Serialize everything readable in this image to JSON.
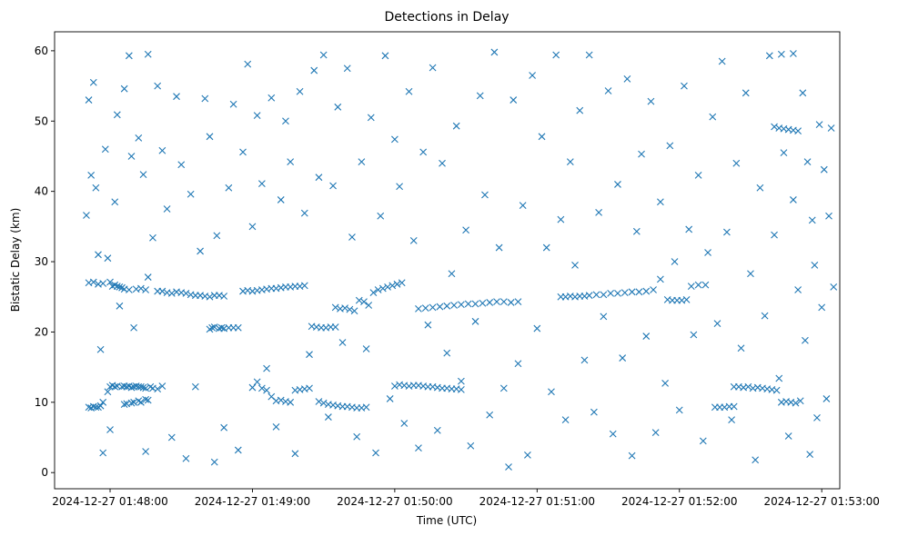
{
  "chart_data": {
    "type": "scatter",
    "title": "Detections in Delay",
    "xlabel": "Time (UTC)",
    "ylabel": "Bistatic Delay (km)",
    "x_units": "seconds after 2024-12-27 01:48:00",
    "xlim": [
      -23.4,
      307.6
    ],
    "ylim": [
      -2.3,
      62.7
    ],
    "grid": false,
    "marker": "x",
    "color": "#1f77b4",
    "x_ticks": [
      {
        "value": 0,
        "label": "2024-12-27 01:48:00"
      },
      {
        "value": 60,
        "label": "2024-12-27 01:49:00"
      },
      {
        "value": 120,
        "label": "2024-12-27 01:50:00"
      },
      {
        "value": 180,
        "label": "2024-12-27 01:51:00"
      },
      {
        "value": 240,
        "label": "2024-12-27 01:52:00"
      },
      {
        "value": 300,
        "label": "2024-12-27 01:53:00"
      }
    ],
    "y_ticks": [
      {
        "value": 0,
        "label": "0"
      },
      {
        "value": 10,
        "label": "10"
      },
      {
        "value": 20,
        "label": "20"
      },
      {
        "value": 30,
        "label": "30"
      },
      {
        "value": 40,
        "label": "40"
      },
      {
        "value": 50,
        "label": "50"
      },
      {
        "value": 60,
        "label": "60"
      }
    ],
    "points": [
      [
        -9,
        9.3
      ],
      [
        -8,
        9.2
      ],
      [
        -7,
        9.4
      ],
      [
        -6,
        9.3
      ],
      [
        -5,
        9.3
      ],
      [
        -4,
        9.5
      ],
      [
        -3,
        10.0
      ],
      [
        -1,
        11.5
      ],
      [
        0,
        12.2
      ],
      [
        1,
        12.4
      ],
      [
        2,
        12.2
      ],
      [
        3,
        12.3
      ],
      [
        5,
        12.2
      ],
      [
        6,
        12.3
      ],
      [
        7,
        12.2
      ],
      [
        8,
        12.3
      ],
      [
        9,
        12.1
      ],
      [
        10,
        12.2
      ],
      [
        11,
        12.3
      ],
      [
        12,
        12.2
      ],
      [
        13,
        12.2
      ],
      [
        14,
        12.1
      ],
      [
        15,
        12.0
      ],
      [
        17,
        12.2
      ],
      [
        18,
        12.0
      ],
      [
        20,
        11.9
      ],
      [
        22,
        12.3
      ],
      [
        6,
        9.7
      ],
      [
        7,
        9.8
      ],
      [
        9,
        9.9
      ],
      [
        10,
        10.0
      ],
      [
        12,
        10.2
      ],
      [
        13,
        10.0
      ],
      [
        15,
        10.4
      ],
      [
        16,
        10.3
      ],
      [
        -9,
        27.0
      ],
      [
        -7,
        27.1
      ],
      [
        -5,
        26.8
      ],
      [
        -3,
        26.9
      ],
      [
        0,
        27.1
      ],
      [
        1,
        26.5
      ],
      [
        2,
        26.7
      ],
      [
        3,
        26.5
      ],
      [
        4,
        26.4
      ],
      [
        5,
        26.3
      ],
      [
        6,
        26.1
      ],
      [
        8,
        26.0
      ],
      [
        11,
        26.1
      ],
      [
        13,
        26.2
      ],
      [
        15,
        26.0
      ],
      [
        16,
        27.8
      ],
      [
        20,
        25.8
      ],
      [
        22,
        25.8
      ],
      [
        24,
        25.6
      ],
      [
        26,
        25.5
      ],
      [
        28,
        25.7
      ],
      [
        30,
        25.6
      ],
      [
        32,
        25.5
      ],
      [
        34,
        25.3
      ],
      [
        36,
        25.2
      ],
      [
        38,
        25.2
      ],
      [
        40,
        25.1
      ],
      [
        42,
        25.0
      ],
      [
        44,
        25.2
      ],
      [
        46,
        25.2
      ],
      [
        48,
        25.1
      ],
      [
        42,
        20.4
      ],
      [
        43,
        20.6
      ],
      [
        44,
        20.7
      ],
      [
        46,
        20.5
      ],
      [
        47,
        20.6
      ],
      [
        48,
        20.5
      ],
      [
        50,
        20.6
      ],
      [
        52,
        20.6
      ],
      [
        54,
        20.6
      ],
      [
        56,
        25.8
      ],
      [
        58,
        25.9
      ],
      [
        60,
        25.8
      ],
      [
        62,
        25.9
      ],
      [
        64,
        26.0
      ],
      [
        66,
        26.1
      ],
      [
        68,
        26.2
      ],
      [
        70,
        26.2
      ],
      [
        72,
        26.3
      ],
      [
        74,
        26.4
      ],
      [
        76,
        26.4
      ],
      [
        78,
        26.5
      ],
      [
        80,
        26.5
      ],
      [
        82,
        26.6
      ],
      [
        60,
        12.1
      ],
      [
        62,
        12.9
      ],
      [
        64,
        12.0
      ],
      [
        66,
        11.7
      ],
      [
        68,
        10.8
      ],
      [
        70,
        10.2
      ],
      [
        72,
        10.3
      ],
      [
        74,
        10.1
      ],
      [
        76,
        10.0
      ],
      [
        78,
        11.7
      ],
      [
        80,
        11.8
      ],
      [
        82,
        11.9
      ],
      [
        84,
        12.0
      ],
      [
        88,
        10.1
      ],
      [
        90,
        9.9
      ],
      [
        92,
        9.7
      ],
      [
        94,
        9.6
      ],
      [
        96,
        9.5
      ],
      [
        98,
        9.4
      ],
      [
        100,
        9.4
      ],
      [
        102,
        9.3
      ],
      [
        104,
        9.2
      ],
      [
        106,
        9.2
      ],
      [
        108,
        9.3
      ],
      [
        85,
        20.8
      ],
      [
        87,
        20.7
      ],
      [
        89,
        20.6
      ],
      [
        91,
        20.6
      ],
      [
        93,
        20.7
      ],
      [
        95,
        20.7
      ],
      [
        95,
        23.5
      ],
      [
        97,
        23.3
      ],
      [
        99,
        23.4
      ],
      [
        101,
        23.2
      ],
      [
        103,
        23.0
      ],
      [
        105,
        24.5
      ],
      [
        107,
        24.3
      ],
      [
        109,
        23.8
      ],
      [
        111,
        25.6
      ],
      [
        113,
        26.0
      ],
      [
        115,
        26.2
      ],
      [
        117,
        26.4
      ],
      [
        119,
        26.6
      ],
      [
        121,
        26.8
      ],
      [
        123,
        27.0
      ],
      [
        120,
        12.3
      ],
      [
        122,
        12.5
      ],
      [
        124,
        12.4
      ],
      [
        126,
        12.3
      ],
      [
        128,
        12.4
      ],
      [
        130,
        12.4
      ],
      [
        132,
        12.3
      ],
      [
        134,
        12.2
      ],
      [
        136,
        12.2
      ],
      [
        138,
        12.1
      ],
      [
        140,
        12.0
      ],
      [
        142,
        12.0
      ],
      [
        144,
        11.9
      ],
      [
        146,
        11.9
      ],
      [
        148,
        11.8
      ],
      [
        130,
        23.3
      ],
      [
        133,
        23.4
      ],
      [
        136,
        23.5
      ],
      [
        139,
        23.6
      ],
      [
        142,
        23.7
      ],
      [
        145,
        23.8
      ],
      [
        148,
        23.9
      ],
      [
        151,
        24.0
      ],
      [
        154,
        24.0
      ],
      [
        157,
        24.1
      ],
      [
        160,
        24.2
      ],
      [
        163,
        24.3
      ],
      [
        166,
        24.3
      ],
      [
        169,
        24.2
      ],
      [
        172,
        24.3
      ],
      [
        190,
        25.0
      ],
      [
        192,
        25.0
      ],
      [
        194,
        25.1
      ],
      [
        196,
        25.0
      ],
      [
        198,
        25.1
      ],
      [
        200,
        25.1
      ],
      [
        202,
        25.2
      ],
      [
        205,
        25.3
      ],
      [
        208,
        25.3
      ],
      [
        211,
        25.5
      ],
      [
        214,
        25.5
      ],
      [
        217,
        25.6
      ],
      [
        220,
        25.7
      ],
      [
        223,
        25.7
      ],
      [
        226,
        25.8
      ],
      [
        229,
        26.0
      ],
      [
        232,
        27.5
      ],
      [
        235,
        24.6
      ],
      [
        237,
        24.5
      ],
      [
        239,
        24.5
      ],
      [
        241,
        24.5
      ],
      [
        243,
        24.6
      ],
      [
        245,
        26.5
      ],
      [
        248,
        26.7
      ],
      [
        251,
        26.7
      ],
      [
        255,
        9.3
      ],
      [
        257,
        9.3
      ],
      [
        259,
        9.3
      ],
      [
        261,
        9.4
      ],
      [
        263,
        9.4
      ],
      [
        263,
        12.2
      ],
      [
        265,
        12.2
      ],
      [
        267,
        12.1
      ],
      [
        269,
        12.2
      ],
      [
        271,
        12.0
      ],
      [
        273,
        12.1
      ],
      [
        275,
        12.0
      ],
      [
        277,
        11.9
      ],
      [
        279,
        11.8
      ],
      [
        281,
        11.7
      ],
      [
        283,
        10.0
      ],
      [
        285,
        10.1
      ],
      [
        287,
        10.0
      ],
      [
        289,
        9.9
      ],
      [
        291,
        10.2
      ],
      [
        280,
        49.2
      ],
      [
        282,
        49.0
      ],
      [
        284,
        48.9
      ],
      [
        286,
        48.8
      ],
      [
        288,
        48.7
      ],
      [
        290,
        48.6
      ],
      [
        283,
        59.5
      ],
      [
        288,
        59.6
      ],
      [
        -10,
        36.6
      ],
      [
        -9,
        53.0
      ],
      [
        -8,
        42.3
      ],
      [
        -7,
        55.5
      ],
      [
        -6,
        40.5
      ],
      [
        -5,
        31.0
      ],
      [
        -4,
        17.5
      ],
      [
        -3,
        2.8
      ],
      [
        -2,
        46.0
      ],
      [
        -1,
        30.5
      ],
      [
        0,
        6.1
      ],
      [
        2,
        38.5
      ],
      [
        3,
        50.9
      ],
      [
        4,
        23.7
      ],
      [
        6,
        54.6
      ],
      [
        8,
        59.3
      ],
      [
        9,
        45.0
      ],
      [
        10,
        20.6
      ],
      [
        12,
        47.6
      ],
      [
        14,
        42.4
      ],
      [
        15,
        3.0
      ],
      [
        16,
        59.5
      ],
      [
        18,
        33.4
      ],
      [
        20,
        55.0
      ],
      [
        22,
        45.8
      ],
      [
        24,
        37.5
      ],
      [
        26,
        5.0
      ],
      [
        28,
        53.5
      ],
      [
        30,
        43.8
      ],
      [
        32,
        2.0
      ],
      [
        34,
        39.6
      ],
      [
        36,
        12.2
      ],
      [
        38,
        31.5
      ],
      [
        40,
        53.2
      ],
      [
        42,
        47.8
      ],
      [
        44,
        1.5
      ],
      [
        45,
        33.7
      ],
      [
        48,
        6.4
      ],
      [
        50,
        40.5
      ],
      [
        52,
        52.4
      ],
      [
        54,
        3.2
      ],
      [
        56,
        45.6
      ],
      [
        58,
        58.1
      ],
      [
        60,
        35.0
      ],
      [
        62,
        50.8
      ],
      [
        64,
        41.1
      ],
      [
        66,
        14.8
      ],
      [
        68,
        53.3
      ],
      [
        70,
        6.5
      ],
      [
        72,
        38.8
      ],
      [
        74,
        50.0
      ],
      [
        76,
        44.2
      ],
      [
        78,
        2.7
      ],
      [
        80,
        54.2
      ],
      [
        82,
        36.9
      ],
      [
        84,
        16.8
      ],
      [
        86,
        57.2
      ],
      [
        88,
        42.0
      ],
      [
        90,
        59.4
      ],
      [
        92,
        7.9
      ],
      [
        94,
        40.8
      ],
      [
        96,
        52.0
      ],
      [
        98,
        18.5
      ],
      [
        100,
        57.5
      ],
      [
        102,
        33.5
      ],
      [
        104,
        5.1
      ],
      [
        106,
        44.2
      ],
      [
        108,
        17.6
      ],
      [
        110,
        50.5
      ],
      [
        112,
        2.8
      ],
      [
        114,
        36.5
      ],
      [
        116,
        59.3
      ],
      [
        118,
        10.5
      ],
      [
        120,
        47.4
      ],
      [
        122,
        40.7
      ],
      [
        124,
        7.0
      ],
      [
        126,
        54.2
      ],
      [
        128,
        33.0
      ],
      [
        130,
        3.5
      ],
      [
        132,
        45.6
      ],
      [
        134,
        21.0
      ],
      [
        136,
        57.6
      ],
      [
        138,
        6.0
      ],
      [
        140,
        44.0
      ],
      [
        142,
        17.0
      ],
      [
        144,
        28.3
      ],
      [
        146,
        49.3
      ],
      [
        148,
        13.0
      ],
      [
        150,
        34.5
      ],
      [
        152,
        3.8
      ],
      [
        154,
        21.5
      ],
      [
        156,
        53.6
      ],
      [
        158,
        39.5
      ],
      [
        160,
        8.2
      ],
      [
        162,
        59.8
      ],
      [
        164,
        32.0
      ],
      [
        166,
        12.0
      ],
      [
        168,
        0.8
      ],
      [
        170,
        53.0
      ],
      [
        172,
        15.5
      ],
      [
        174,
        38.0
      ],
      [
        176,
        2.5
      ],
      [
        178,
        56.5
      ],
      [
        180,
        20.5
      ],
      [
        182,
        47.8
      ],
      [
        184,
        32.0
      ],
      [
        186,
        11.5
      ],
      [
        188,
        59.4
      ],
      [
        190,
        36.0
      ],
      [
        192,
        7.5
      ],
      [
        194,
        44.2
      ],
      [
        196,
        29.5
      ],
      [
        198,
        51.5
      ],
      [
        200,
        16.0
      ],
      [
        202,
        59.4
      ],
      [
        204,
        8.6
      ],
      [
        206,
        37.0
      ],
      [
        208,
        22.2
      ],
      [
        210,
        54.3
      ],
      [
        212,
        5.5
      ],
      [
        214,
        41.0
      ],
      [
        216,
        16.3
      ],
      [
        218,
        56.0
      ],
      [
        220,
        2.4
      ],
      [
        222,
        34.3
      ],
      [
        224,
        45.3
      ],
      [
        226,
        19.4
      ],
      [
        228,
        52.8
      ],
      [
        230,
        5.7
      ],
      [
        232,
        38.5
      ],
      [
        234,
        12.7
      ],
      [
        236,
        46.5
      ],
      [
        238,
        30.0
      ],
      [
        240,
        8.9
      ],
      [
        242,
        55.0
      ],
      [
        244,
        34.6
      ],
      [
        246,
        19.6
      ],
      [
        248,
        42.3
      ],
      [
        250,
        4.5
      ],
      [
        252,
        31.3
      ],
      [
        254,
        50.6
      ],
      [
        256,
        21.2
      ],
      [
        258,
        58.5
      ],
      [
        260,
        34.2
      ],
      [
        262,
        7.5
      ],
      [
        264,
        44.0
      ],
      [
        266,
        17.7
      ],
      [
        268,
        54.0
      ],
      [
        270,
        28.3
      ],
      [
        272,
        1.8
      ],
      [
        274,
        40.5
      ],
      [
        276,
        22.3
      ],
      [
        278,
        59.3
      ],
      [
        280,
        33.8
      ],
      [
        282,
        13.4
      ],
      [
        284,
        45.5
      ],
      [
        286,
        5.2
      ],
      [
        288,
        38.8
      ],
      [
        290,
        26.0
      ],
      [
        292,
        54.0
      ],
      [
        293,
        18.8
      ],
      [
        294,
        44.2
      ],
      [
        295,
        2.6
      ],
      [
        296,
        35.9
      ],
      [
        297,
        29.5
      ],
      [
        298,
        7.8
      ],
      [
        299,
        49.5
      ],
      [
        300,
        23.5
      ],
      [
        301,
        43.1
      ],
      [
        302,
        10.5
      ],
      [
        303,
        36.5
      ],
      [
        304,
        49.0
      ],
      [
        305,
        26.4
      ]
    ]
  }
}
